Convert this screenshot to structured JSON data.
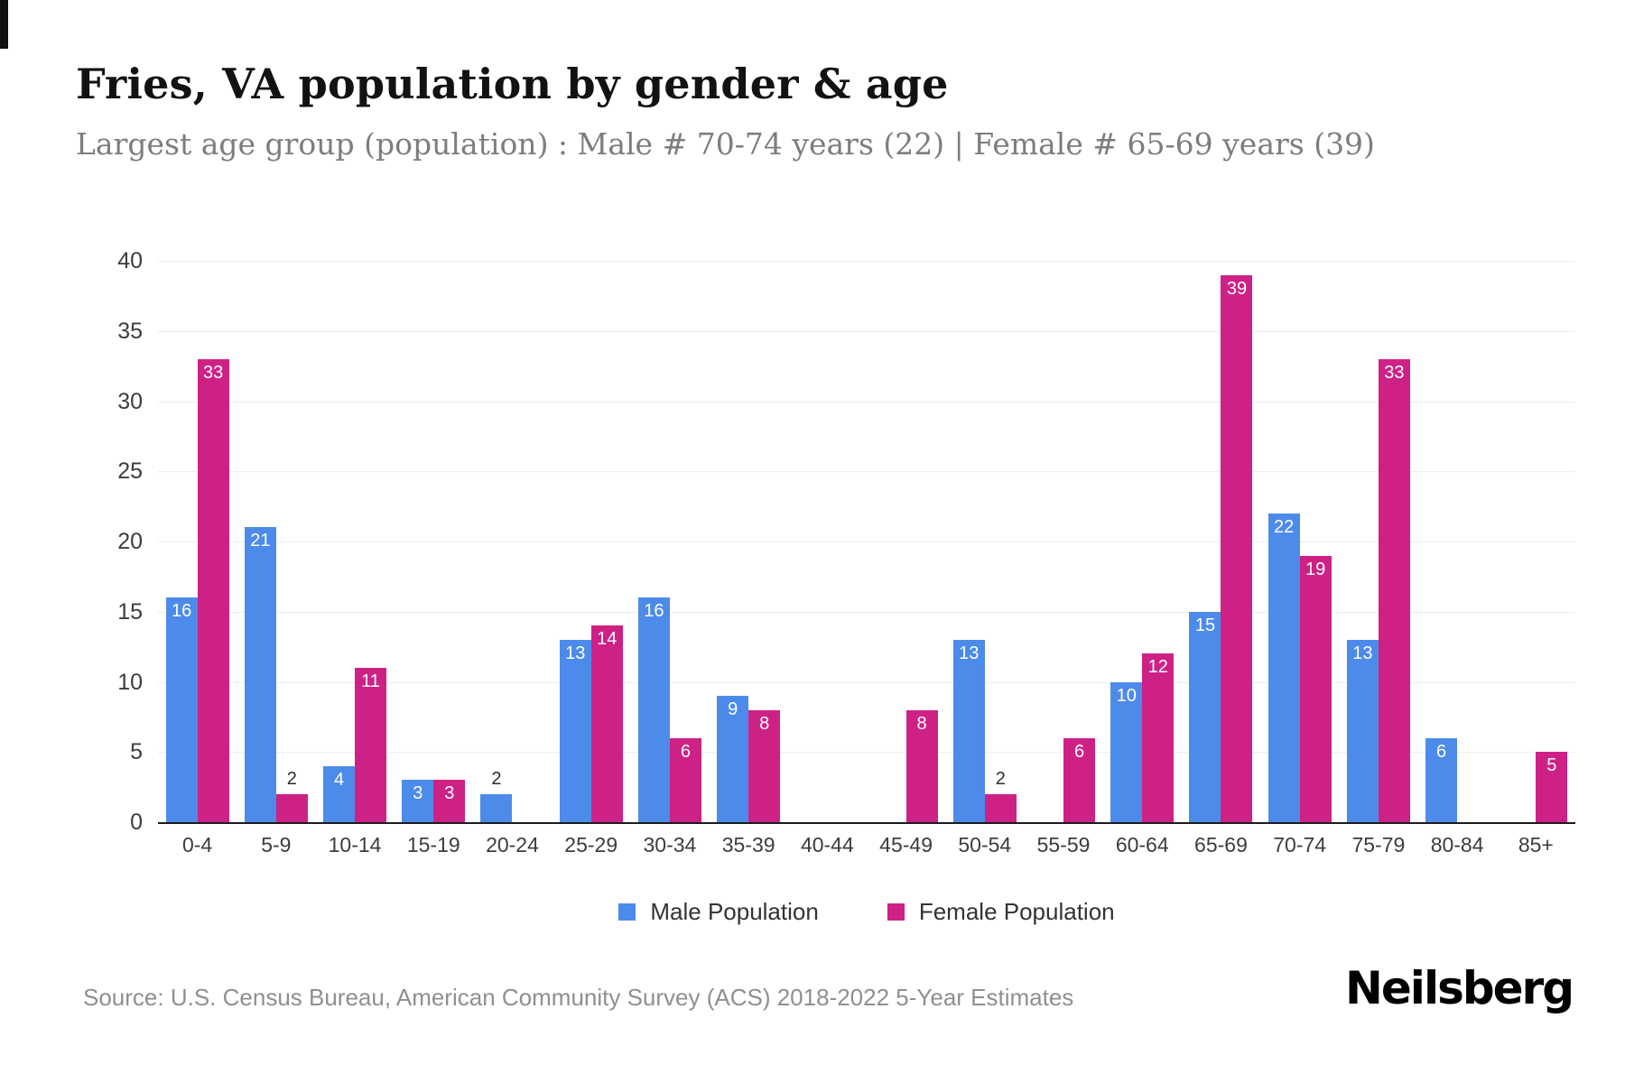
{
  "chart_data": {
    "type": "bar",
    "title": "Fries, VA population by gender & age",
    "subtitle": "Largest age group (population) : Male # 70-74 years (22) | Female # 65-69 years (39)",
    "categories": [
      "0-4",
      "5-9",
      "10-14",
      "15-19",
      "20-24",
      "25-29",
      "30-34",
      "35-39",
      "40-44",
      "45-49",
      "50-54",
      "55-59",
      "60-64",
      "65-69",
      "70-74",
      "75-79",
      "80-84",
      "85+"
    ],
    "series": [
      {
        "name": "Male Population",
        "color": "#4d8bea",
        "values": [
          16,
          21,
          4,
          3,
          2,
          13,
          16,
          9,
          0,
          0,
          13,
          0,
          10,
          15,
          22,
          13,
          6,
          0
        ]
      },
      {
        "name": "Female Population",
        "color": "#ce2186",
        "values": [
          33,
          2,
          11,
          3,
          0,
          14,
          6,
          8,
          0,
          8,
          2,
          6,
          12,
          39,
          19,
          33,
          0,
          5
        ]
      }
    ],
    "xlabel": "",
    "ylabel": "",
    "ylim": [
      0,
      40
    ],
    "yticks": [
      0,
      5,
      10,
      15,
      20,
      25,
      30,
      35,
      40
    ],
    "grid": true,
    "legend_position": "bottom",
    "label_inside_threshold": 3
  },
  "footer": {
    "source": "Source: U.S. Census Bureau, American Community Survey (ACS) 2018-2022 5-Year Estimates",
    "brand": "Neilsberg"
  }
}
